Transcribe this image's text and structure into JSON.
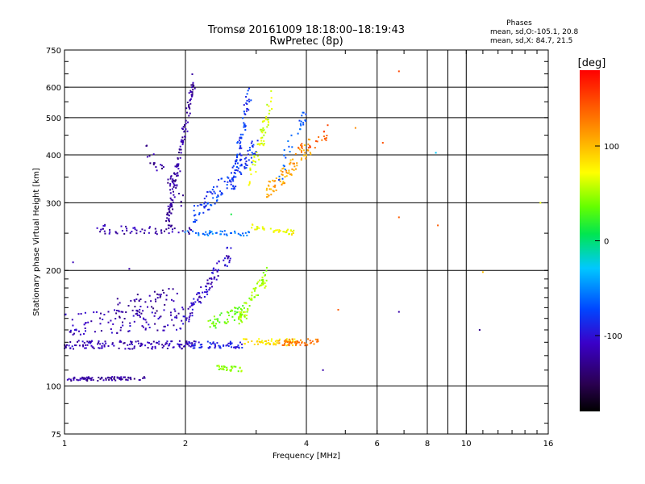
{
  "header": {
    "title_line1": "Tromsø 20161009 18:18:00–18:19:43",
    "title_line2": "RwPretec (8p)",
    "phase_heading": "Phases",
    "phase_o": "mean, sd,O:-105.1, 20.8",
    "phase_x": "mean, sd,X: 84.7, 21.5"
  },
  "colorbar": {
    "label": "[deg]",
    "range": [
      -180,
      180
    ],
    "ticks": [
      100,
      0,
      -100
    ],
    "tick_labels": [
      "100",
      "0",
      "-100"
    ]
  },
  "chart_data": {
    "type": "scatter",
    "title": "Tromsø 20161009 18:18:00–18:19:43",
    "subtitle": "RwPretec (8p)",
    "xlabel": "Frequency [MHz]",
    "ylabel": "Stationary phase Virtual Height [km]",
    "x_scale": "log",
    "y_scale": "log",
    "xlim": [
      1,
      16
    ],
    "ylim": [
      75,
      750
    ],
    "x_ticks": [
      1,
      2,
      4,
      6,
      8,
      10,
      16
    ],
    "x_tick_labels": [
      "1",
      "2",
      "4",
      "6",
      "8",
      "10",
      "16"
    ],
    "y_ticks": [
      75,
      100,
      200,
      300,
      400,
      500,
      600,
      750
    ],
    "y_tick_labels": [
      "75",
      "100",
      "200",
      "300",
      "400",
      "500",
      "600",
      "750"
    ],
    "x_grid": [
      2,
      4,
      6,
      8,
      9,
      10
    ],
    "y_grid": [
      100,
      200,
      300,
      400,
      500,
      600
    ],
    "grid": true,
    "color_by": "phase [deg]",
    "traces": [
      {
        "f0": 1.0,
        "f1": 1.6,
        "h0": 104,
        "h1": 105,
        "phase": -125,
        "n": 80,
        "jitter": 0.012
      },
      {
        "f0": 1.0,
        "f1": 2.1,
        "h0": 128,
        "h1": 128,
        "phase": -115,
        "n": 140,
        "jitter": 0.025
      },
      {
        "f0": 1.0,
        "f1": 2.0,
        "h0": 145,
        "h1": 150,
        "phase": -115,
        "n": 110,
        "jitter": 0.07
      },
      {
        "f0": 1.3,
        "f1": 1.9,
        "h0": 158,
        "h1": 170,
        "phase": -125,
        "n": 50,
        "jitter": 0.06
      },
      {
        "f0": 2.0,
        "f1": 2.6,
        "h0": 150,
        "h1": 225,
        "phase": -110,
        "n": 90,
        "jitter": 0.05
      },
      {
        "f0": 2.0,
        "f1": 2.8,
        "h0": 128,
        "h1": 128,
        "phase": -95,
        "n": 60,
        "jitter": 0.02
      },
      {
        "f0": 2.3,
        "f1": 2.8,
        "h0": 145,
        "h1": 158,
        "phase": 35,
        "n": 50,
        "jitter": 0.04
      },
      {
        "f0": 2.7,
        "f1": 3.2,
        "h0": 145,
        "h1": 195,
        "phase": 50,
        "n": 70,
        "jitter": 0.05
      },
      {
        "f0": 2.8,
        "f1": 3.8,
        "h0": 130,
        "h1": 130,
        "phase": 85,
        "n": 60,
        "jitter": 0.02
      },
      {
        "f0": 3.4,
        "f1": 4.3,
        "h0": 130,
        "h1": 130,
        "phase": 130,
        "n": 50,
        "jitter": 0.02
      },
      {
        "f0": 2.4,
        "f1": 2.8,
        "h0": 112,
        "h1": 110,
        "phase": 45,
        "n": 30,
        "jitter": 0.015
      },
      {
        "f0": 1.2,
        "f1": 2.1,
        "h0": 255,
        "h1": 255,
        "phase": -120,
        "n": 60,
        "jitter": 0.03
      },
      {
        "f0": 1.8,
        "f1": 2.1,
        "h0": 265,
        "h1": 620,
        "phase": -125,
        "n": 130,
        "jitter": 0.05
      },
      {
        "f0": 1.6,
        "f1": 2.0,
        "h0": 410,
        "h1": 300,
        "phase": -125,
        "n": 35,
        "jitter": 0.04
      },
      {
        "f0": 2.1,
        "f1": 3.0,
        "h0": 275,
        "h1": 420,
        "phase": -80,
        "n": 110,
        "jitter": 0.06
      },
      {
        "f0": 2.6,
        "f1": 2.9,
        "h0": 320,
        "h1": 600,
        "phase": -85,
        "n": 70,
        "jitter": 0.06
      },
      {
        "f0": 2.0,
        "f1": 2.9,
        "h0": 250,
        "h1": 250,
        "phase": -60,
        "n": 45,
        "jitter": 0.015
      },
      {
        "f0": 2.9,
        "f1": 3.8,
        "h0": 260,
        "h1": 250,
        "phase": 75,
        "n": 40,
        "jitter": 0.015
      },
      {
        "f0": 2.9,
        "f1": 3.3,
        "h0": 350,
        "h1": 560,
        "phase": 65,
        "n": 60,
        "jitter": 0.06
      },
      {
        "f0": 3.2,
        "f1": 4.1,
        "h0": 320,
        "h1": 420,
        "phase": 110,
        "n": 80,
        "jitter": 0.05
      },
      {
        "f0": 3.4,
        "f1": 4.0,
        "h0": 350,
        "h1": 520,
        "phase": -70,
        "n": 30,
        "jitter": 0.08
      },
      {
        "f0": 3.7,
        "f1": 4.5,
        "h0": 390,
        "h1": 460,
        "phase": 140,
        "n": 25,
        "jitter": 0.05
      }
    ],
    "scattered_points": [
      {
        "f": 6.8,
        "h": 660,
        "phase": 150
      },
      {
        "f": 6.2,
        "h": 430,
        "phase": 145
      },
      {
        "f": 5.3,
        "h": 470,
        "phase": 120
      },
      {
        "f": 8.4,
        "h": 405,
        "phase": -30
      },
      {
        "f": 6.8,
        "h": 275,
        "phase": 140
      },
      {
        "f": 8.5,
        "h": 262,
        "phase": 140
      },
      {
        "f": 11.0,
        "h": 198,
        "phase": 100
      },
      {
        "f": 6.8,
        "h": 156,
        "phase": -120
      },
      {
        "f": 10.8,
        "h": 140,
        "phase": -130
      },
      {
        "f": 15.3,
        "h": 300,
        "phase": 70
      },
      {
        "f": 4.4,
        "h": 110,
        "phase": -120
      },
      {
        "f": 4.8,
        "h": 158,
        "phase": 140
      },
      {
        "f": 1.05,
        "h": 210,
        "phase": -115
      },
      {
        "f": 1.45,
        "h": 202,
        "phase": -120
      },
      {
        "f": 2.6,
        "h": 280,
        "phase": 10
      }
    ]
  }
}
